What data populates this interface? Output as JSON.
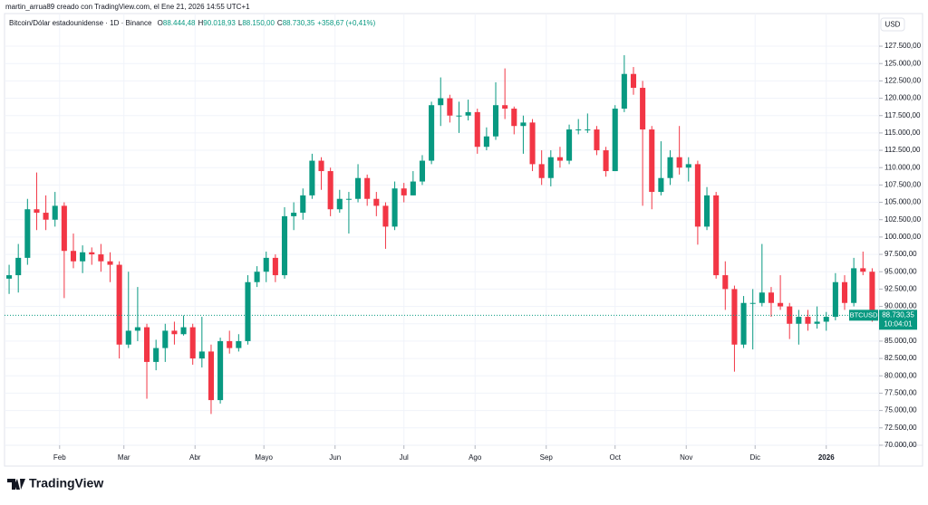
{
  "caption": "martin_arrua89 creado con TradingView.com, el Ene 21, 2026 14:55 UTC+1",
  "brand": "TradingView",
  "chart_data": {
    "type": "candlestick",
    "title": "Bitcoin/Dólar estadounidense · 1D · Binance",
    "ohlc": [
      {
        "label": "O",
        "value": "88.444,48"
      },
      {
        "label": "H",
        "value": "90.018,93"
      },
      {
        "label": "L",
        "value": "88.150,00"
      },
      {
        "label": "C",
        "value": "88.730,35"
      }
    ],
    "change": "+358,67 (+0,41%)",
    "currency": "USD",
    "last_price_label": "88.730,35",
    "countdown": "10:04:01",
    "up_color": "#089981",
    "down_color": "#f23645",
    "grid": true,
    "xlim": [
      0,
      381
    ],
    "xticks": [
      {
        "value": 24,
        "label": "Feb"
      },
      {
        "value": 52,
        "label": "Mar"
      },
      {
        "value": 83,
        "label": "Abr"
      },
      {
        "value": 113,
        "label": "Mayo"
      },
      {
        "value": 144,
        "label": "Jun"
      },
      {
        "value": 174,
        "label": "Jul"
      },
      {
        "value": 205,
        "label": "Ago"
      },
      {
        "value": 236,
        "label": "Sep"
      },
      {
        "value": 266,
        "label": "Oct"
      },
      {
        "value": 297,
        "label": "Nov"
      },
      {
        "value": 327,
        "label": "Dic"
      },
      {
        "value": 358,
        "label": "2026"
      }
    ],
    "ylim": [
      69600,
      132200
    ],
    "yticks": [
      {
        "value": 70000,
        "label": "70.000,00"
      },
      {
        "value": 72500,
        "label": "72.500,00"
      },
      {
        "value": 75000,
        "label": "75.000,00"
      },
      {
        "value": 77500,
        "label": "77.500,00"
      },
      {
        "value": 80000,
        "label": "80.000,00"
      },
      {
        "value": 82500,
        "label": "82.500,00"
      },
      {
        "value": 85000,
        "label": "85.000,00"
      },
      {
        "value": 87500,
        "label": "87.500,00"
      },
      {
        "value": 90000,
        "label": "90.000,00"
      },
      {
        "value": 92500,
        "label": "92.500,00"
      },
      {
        "value": 95000,
        "label": "95.000,00"
      },
      {
        "value": 97500,
        "label": "97.500,00"
      },
      {
        "value": 100000,
        "label": "100.000,00"
      },
      {
        "value": 102500,
        "label": "102.500,00"
      },
      {
        "value": 105000,
        "label": "105.000,00"
      },
      {
        "value": 107500,
        "label": "107.500,00"
      },
      {
        "value": 110000,
        "label": "110.000,00"
      },
      {
        "value": 112500,
        "label": "112.500,00"
      },
      {
        "value": 115000,
        "label": "115.000,00"
      },
      {
        "value": 117500,
        "label": "117.500,00"
      },
      {
        "value": 120000,
        "label": "120.000,00"
      },
      {
        "value": 122500,
        "label": "122.500,00"
      },
      {
        "value": 125000,
        "label": "125.000,00"
      },
      {
        "value": 127500,
        "label": "127.500,00"
      }
    ],
    "series": [
      {
        "name": "BTCUSD",
        "x": [
          2,
          6,
          10,
          14,
          18,
          22,
          26,
          30,
          34,
          38,
          42,
          46,
          50,
          54,
          58,
          62,
          66,
          70,
          74,
          78,
          82,
          86,
          90,
          94,
          98,
          102,
          106,
          110,
          114,
          118,
          122,
          126,
          130,
          134,
          138,
          142,
          146,
          150,
          154,
          158,
          162,
          166,
          170,
          174,
          178,
          182,
          186,
          190,
          194,
          198,
          202,
          206,
          210,
          214,
          218,
          222,
          226,
          230,
          234,
          238,
          242,
          246,
          250,
          254,
          258,
          262,
          266,
          270,
          274,
          278,
          282,
          286,
          290,
          294,
          298,
          302,
          306,
          310,
          314,
          318,
          322,
          326,
          330,
          334,
          338,
          342,
          346,
          350,
          354,
          358,
          362,
          366,
          370,
          374,
          378
        ],
        "open": [
          94000,
          94500,
          97000,
          104000,
          103500,
          102500,
          104500,
          98000,
          96500,
          97800,
          97500,
          96500,
          96000,
          84500,
          86500,
          87000,
          82000,
          84000,
          86500,
          86000,
          87000,
          82500,
          83500,
          76500,
          85000,
          84000,
          85000,
          93500,
          95000,
          97000,
          94500,
          103000,
          103500,
          106000,
          111000,
          109500,
          104000,
          105500,
          105500,
          108500,
          105500,
          104500,
          101500,
          107000,
          106000,
          108000,
          111000,
          119000,
          120000,
          117500,
          117500,
          118000,
          113000,
          114500,
          119000,
          118500,
          116000,
          116500,
          110500,
          108500,
          111500,
          111000,
          115500,
          115500,
          115500,
          112500,
          109500,
          118500,
          123500,
          121500,
          115500,
          106500,
          108500,
          111500,
          110000,
          110500,
          101500,
          106000,
          94500,
          92500,
          84500,
          90500,
          90500,
          92000,
          90500,
          90000,
          87500,
          88500,
          87500,
          87800,
          88500,
          93500,
          90500,
          95500,
          95000
        ],
        "high": [
          96000,
          99000,
          105500,
          109300,
          106000,
          106500,
          105000,
          100500,
          98800,
          98500,
          99000,
          97800,
          96500,
          95000,
          92800,
          87500,
          85200,
          87500,
          87800,
          88700,
          87500,
          88500,
          84500,
          85500,
          86500,
          86000,
          94500,
          95800,
          97900,
          97500,
          104300,
          105000,
          107000,
          112000,
          111500,
          110000,
          106800,
          106500,
          110500,
          109000,
          106500,
          105000,
          108000,
          107800,
          109500,
          111800,
          119500,
          123000,
          120500,
          119500,
          119800,
          118500,
          115800,
          122300,
          124300,
          118800,
          117500,
          117000,
          112500,
          112500,
          113000,
          116200,
          117000,
          117800,
          116000,
          113000,
          119000,
          126200,
          124500,
          122500,
          116000,
          113800,
          112500,
          116000,
          111500,
          111000,
          107200,
          106500,
          96500,
          93000,
          91500,
          92500,
          99000,
          92800,
          94500,
          90500,
          89500,
          89500,
          90000,
          89200,
          94800,
          94500,
          97000,
          97900,
          95500
        ],
        "low": [
          91800,
          92000,
          96000,
          101000,
          101000,
          101500,
          91200,
          95500,
          94800,
          96000,
          95000,
          93500,
          82500,
          84000,
          85000,
          76700,
          80800,
          82000,
          84500,
          85800,
          81600,
          81200,
          74500,
          76000,
          83200,
          83500,
          84500,
          92800,
          93500,
          93500,
          94000,
          101000,
          102500,
          105500,
          106800,
          103000,
          103500,
          100500,
          105000,
          104500,
          103000,
          98300,
          101000,
          105000,
          106000,
          107500,
          110500,
          116000,
          116500,
          115000,
          116800,
          112000,
          112500,
          114000,
          117000,
          114800,
          112000,
          109500,
          107500,
          107300,
          110000,
          110500,
          114800,
          115000,
          111800,
          108700,
          109500,
          118000,
          120500,
          104500,
          104000,
          106000,
          107500,
          109000,
          108000,
          98900,
          101000,
          94000,
          89500,
          80600,
          84000,
          83800,
          90000,
          88500,
          89500,
          85300,
          84500,
          86500,
          86800,
          86500,
          88000,
          89500,
          90000,
          94500,
          87800
        ],
        "close": [
          94500,
          97000,
          104000,
          103500,
          102500,
          104500,
          98000,
          96500,
          97800,
          97500,
          96500,
          96000,
          84500,
          86500,
          87000,
          82000,
          84000,
          86500,
          86000,
          87000,
          82500,
          83500,
          76500,
          85000,
          84000,
          85000,
          93500,
          95000,
          97000,
          94500,
          103000,
          103500,
          106000,
          111000,
          109500,
          104000,
          105500,
          105500,
          108500,
          105500,
          104500,
          101500,
          107000,
          106000,
          108000,
          111000,
          119000,
          120000,
          117500,
          117500,
          118000,
          113000,
          114500,
          119000,
          118500,
          116000,
          116500,
          110500,
          108500,
          111500,
          111000,
          115500,
          115500,
          115500,
          112500,
          109500,
          118500,
          123500,
          121500,
          115500,
          106500,
          108500,
          111500,
          110000,
          110500,
          101500,
          106000,
          94500,
          92500,
          84500,
          90500,
          90500,
          92000,
          90500,
          90000,
          87500,
          88500,
          87500,
          87800,
          88500,
          93500,
          90500,
          95500,
          95000,
          88730.35
        ]
      }
    ]
  }
}
